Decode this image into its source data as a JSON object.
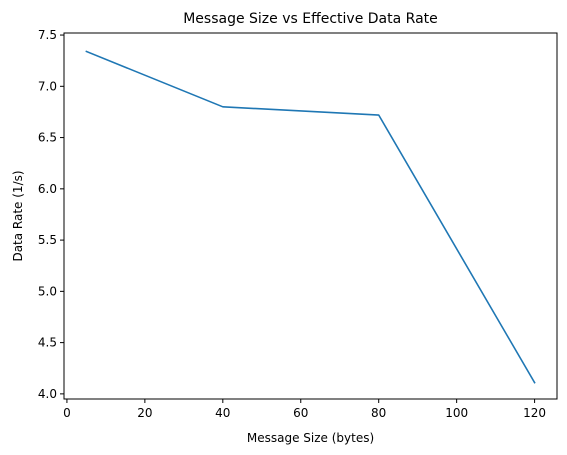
{
  "chart_data": {
    "type": "line",
    "title": "Message Size vs Effective Data Rate",
    "xlabel": "Message Size (bytes)",
    "ylabel": "Data Rate (1/s)",
    "xlim": [
      -0.75,
      125.75
    ],
    "ylim": [
      3.95,
      7.52
    ],
    "xticks": [
      0,
      20,
      40,
      60,
      80,
      100,
      120
    ],
    "yticks": [
      4.0,
      4.5,
      5.0,
      5.5,
      6.0,
      6.5,
      7.0,
      7.5
    ],
    "xtick_labels": [
      "0",
      "20",
      "40",
      "60",
      "80",
      "100",
      "120"
    ],
    "ytick_labels": [
      "4.0",
      "4.5",
      "5.0",
      "5.5",
      "6.0",
      "6.5",
      "7.0",
      "7.5"
    ],
    "grid": false,
    "legend": "none",
    "x": [
      5,
      40,
      80,
      120
    ],
    "series": [
      {
        "values": [
          7.34,
          6.8,
          6.72,
          4.11
        ],
        "color": "#1f77b4"
      }
    ]
  }
}
